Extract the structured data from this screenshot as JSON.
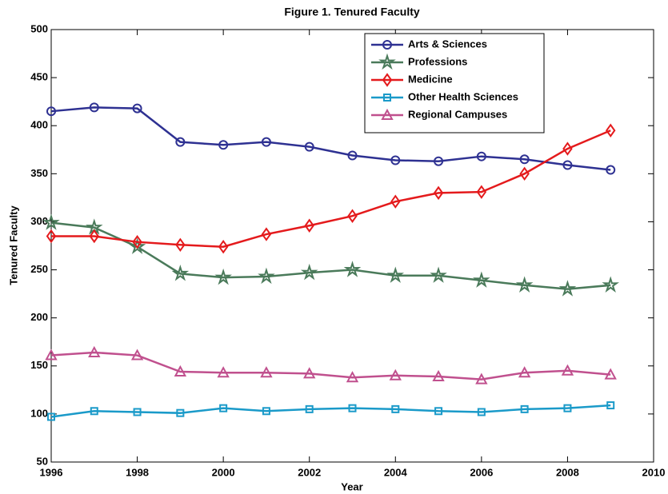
{
  "chart_data": {
    "type": "line",
    "title": "Figure 1. Tenured Faculty",
    "x_label": "Year",
    "y_label": "Tenured Faculty",
    "x": [
      1996,
      1997,
      1998,
      1999,
      2000,
      2001,
      2002,
      2003,
      2004,
      2005,
      2006,
      2007,
      2008,
      2009
    ],
    "series": [
      {
        "name": "Arts & Sciences",
        "color": "#2e3192",
        "marker": "circle",
        "values": [
          415,
          419,
          418,
          383,
          380,
          383,
          378,
          369,
          364,
          363,
          368,
          365,
          359,
          354
        ]
      },
      {
        "name": "Professions",
        "color": "#4a7a5a",
        "marker": "star",
        "values": [
          299,
          294,
          274,
          246,
          242,
          243,
          247,
          250,
          244,
          244,
          239,
          234,
          230,
          234
        ]
      },
      {
        "name": "Medicine",
        "color": "#e41a1c",
        "marker": "diamond",
        "values": [
          285,
          285,
          279,
          276,
          274,
          287,
          296,
          306,
          321,
          330,
          331,
          350,
          376,
          395
        ]
      },
      {
        "name": "Other Health Sciences",
        "color": "#1a9ac9",
        "marker": "square",
        "values": [
          97,
          103,
          102,
          101,
          106,
          103,
          105,
          106,
          105,
          103,
          102,
          105,
          106,
          109
        ]
      },
      {
        "name": "Regional Campuses",
        "color": "#c0508e",
        "marker": "triangle",
        "values": [
          161,
          164,
          161,
          144,
          143,
          143,
          142,
          138,
          140,
          139,
          136,
          143,
          145,
          141
        ]
      }
    ],
    "xlim": [
      1996,
      2010
    ],
    "xticks": [
      1996,
      1998,
      2000,
      2002,
      2004,
      2006,
      2008,
      2010
    ],
    "ylim": [
      50,
      500
    ],
    "yticks": [
      50,
      100,
      150,
      200,
      250,
      300,
      350,
      400,
      450,
      500
    ],
    "grid": false,
    "legend": "upper right"
  }
}
